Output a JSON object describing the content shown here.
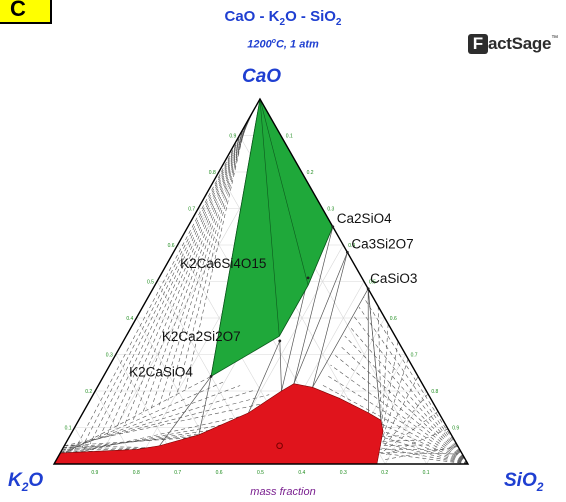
{
  "header": {
    "badge_text": "C",
    "title_main": "CaO - K",
    "title_sub1": "2",
    "title_mid": "O - SiO",
    "title_sub2": "2",
    "conditions_temp": "1200",
    "conditions_deg": "o",
    "conditions_rest": "C, 1 atm"
  },
  "logo": {
    "mark": "F",
    "word": "actSage",
    "tm": "™"
  },
  "vertices": {
    "top": "CaO",
    "left_main": "K",
    "left_sub": "2",
    "left_rest": "O",
    "right_main": "SiO",
    "right_sub": "2"
  },
  "footer": {
    "axis_caption": "mass fraction"
  },
  "colors": {
    "single_phase_region": "#1fa83a",
    "liquid_region": "#e0141c",
    "axes": "#000000",
    "tie_lines": "#555555",
    "title": "#1f3fd1",
    "tick_labels": "#1a8a1a"
  },
  "chart_data": {
    "type": "ternary",
    "components": [
      "CaO",
      "K2O",
      "SiO2"
    ],
    "composition_unit": "mass fraction",
    "temperature_C": 1200,
    "pressure_atm": 1,
    "compounds": [
      {
        "label": "Ca2SiO4",
        "CaO": 0.65,
        "SiO2": 0.35,
        "K2O": 0.0
      },
      {
        "label": "Ca3Si2O7",
        "CaO": 0.58,
        "SiO2": 0.42,
        "K2O": 0.0
      },
      {
        "label": "CaSiO3",
        "CaO": 0.48,
        "SiO2": 0.52,
        "K2O": 0.0
      },
      {
        "label": "K2Ca6Si4O15",
        "CaO": 0.51,
        "SiO2": 0.36,
        "K2O": 0.13
      },
      {
        "label": "K2Ca2Si2O7",
        "CaO": 0.35,
        "SiO2": 0.37,
        "K2O": 0.29
      },
      {
        "label": "K2CaSiO4",
        "CaO": 0.24,
        "SiO2": 0.26,
        "K2O": 0.5
      }
    ],
    "green_region_vertices": [
      {
        "CaO": 1.0,
        "SiO2": 0.0,
        "K2O": 0.0
      },
      {
        "CaO": 0.65,
        "SiO2": 0.35,
        "K2O": 0.0
      },
      {
        "CaO": 0.49,
        "SiO2": 0.37,
        "K2O": 0.14
      },
      {
        "CaO": 0.35,
        "SiO2": 0.37,
        "K2O": 0.28
      },
      {
        "CaO": 0.24,
        "SiO2": 0.26,
        "K2O": 0.5
      }
    ],
    "liquid_region_vertices": [
      {
        "CaO": 0.0,
        "SiO2": 0.0,
        "K2O": 1.0
      },
      {
        "CaO": 0.03,
        "SiO2": 0.0,
        "K2O": 0.97
      },
      {
        "CaO": 0.04,
        "SiO2": 0.18,
        "K2O": 0.78
      },
      {
        "CaO": 0.05,
        "SiO2": 0.23,
        "K2O": 0.72
      },
      {
        "CaO": 0.08,
        "SiO2": 0.31,
        "K2O": 0.61
      },
      {
        "CaO": 0.14,
        "SiO2": 0.4,
        "K2O": 0.46
      },
      {
        "CaO": 0.2,
        "SiO2": 0.45,
        "K2O": 0.35
      },
      {
        "CaO": 0.22,
        "SiO2": 0.47,
        "K2O": 0.31
      },
      {
        "CaO": 0.21,
        "SiO2": 0.52,
        "K2O": 0.27
      },
      {
        "CaO": 0.18,
        "SiO2": 0.6,
        "K2O": 0.22
      },
      {
        "CaO": 0.14,
        "SiO2": 0.69,
        "K2O": 0.17
      },
      {
        "CaO": 0.12,
        "SiO2": 0.73,
        "K2O": 0.15
      },
      {
        "CaO": 0.09,
        "SiO2": 0.75,
        "K2O": 0.16
      },
      {
        "CaO": 0.0,
        "SiO2": 0.78,
        "K2O": 0.22
      },
      {
        "CaO": 0.0,
        "SiO2": 0.0,
        "K2O": 1.0
      }
    ],
    "marker_point": {
      "CaO": 0.05,
      "SiO2": 0.52,
      "K2O": 0.43
    },
    "tick_values": [
      "0.1",
      "0.2",
      "0.3",
      "0.4",
      "0.5",
      "0.6",
      "0.7",
      "0.8",
      "0.9"
    ],
    "grid": true
  }
}
